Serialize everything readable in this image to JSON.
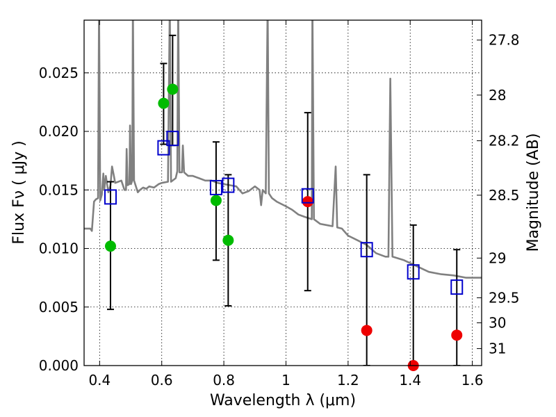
{
  "chart_data": {
    "type": "scatter",
    "xlabel": "Wavelength  λ (μm)",
    "ylabel": "Flux  Fν  ( μJy )",
    "ylabel_right": "Magnitude (AB)",
    "xlim": [
      0.35,
      1.63
    ],
    "ylim": [
      0.0,
      0.0295
    ],
    "grid": true,
    "x_ticks": [
      0.4,
      0.6,
      0.8,
      1.0,
      1.2,
      1.4,
      1.6
    ],
    "x_tick_labels": [
      "0.4",
      "0.6",
      "0.8",
      "1",
      "1.2",
      "1.4",
      "1.6"
    ],
    "y_ticks": [
      0.0,
      0.005,
      0.01,
      0.015,
      0.02,
      0.025
    ],
    "y_tick_labels": [
      "0.000",
      "0.005",
      "0.010",
      "0.015",
      "0.020",
      "0.025"
    ],
    "right_ticks": [
      {
        "label": "27.8",
        "flux": 0.0278
      },
      {
        "label": "28",
        "flux": 0.0231
      },
      {
        "label": "28.2",
        "flux": 0.0192
      },
      {
        "label": "28.5",
        "flux": 0.01455
      },
      {
        "label": "29",
        "flux": 0.00918
      },
      {
        "label": "29.5",
        "flux": 0.00579
      },
      {
        "label": "30",
        "flux": 0.00365
      },
      {
        "label": "31",
        "flux": 0.00145
      }
    ],
    "colors": {
      "model": "#808080",
      "model_photometry": "#0000cc",
      "detections": "#00bb00",
      "upper_limits": "#ee0000",
      "errorbar": "#000000"
    },
    "model_photometry": [
      {
        "x": 0.435,
        "y": 0.0144
      },
      {
        "x": 0.606,
        "y": 0.0186
      },
      {
        "x": 0.635,
        "y": 0.0194
      },
      {
        "x": 0.775,
        "y": 0.0152
      },
      {
        "x": 0.814,
        "y": 0.0154
      },
      {
        "x": 1.07,
        "y": 0.0145
      },
      {
        "x": 1.26,
        "y": 0.0099
      },
      {
        "x": 1.41,
        "y": 0.008
      },
      {
        "x": 1.55,
        "y": 0.0067
      }
    ],
    "detections": [
      {
        "x": 0.435,
        "y": 0.0102
      },
      {
        "x": 0.606,
        "y": 0.0224
      },
      {
        "x": 0.635,
        "y": 0.0236
      },
      {
        "x": 0.775,
        "y": 0.0141
      },
      {
        "x": 0.814,
        "y": 0.0107
      }
    ],
    "upper_limits": [
      {
        "x": 1.07,
        "y": 0.014
      },
      {
        "x": 1.26,
        "y": 0.003
      },
      {
        "x": 1.41,
        "y": 0.0
      },
      {
        "x": 1.55,
        "y": 0.0026
      }
    ],
    "error_bars": [
      {
        "x": 0.435,
        "low": 0.0048,
        "high": 0.0157
      },
      {
        "x": 0.606,
        "low": 0.0189,
        "high": 0.0258
      },
      {
        "x": 0.635,
        "low": 0.0188,
        "high": 0.0282
      },
      {
        "x": 0.775,
        "low": 0.009,
        "high": 0.0191
      },
      {
        "x": 0.814,
        "low": 0.0051,
        "high": 0.0163
      },
      {
        "x": 1.07,
        "low": 0.0064,
        "high": 0.0216
      },
      {
        "x": 1.26,
        "low": 0.0,
        "high": 0.0163
      },
      {
        "x": 1.41,
        "low": 0.0,
        "high": 0.012
      },
      {
        "x": 1.55,
        "low": 0.0,
        "high": 0.0099
      }
    ],
    "model_spectrum": [
      [
        0.35,
        0.0117
      ],
      [
        0.37,
        0.0117
      ],
      [
        0.375,
        0.0115
      ],
      [
        0.382,
        0.014
      ],
      [
        0.388,
        0.0142
      ],
      [
        0.395,
        0.0143
      ],
      [
        0.398,
        0.031
      ],
      [
        0.402,
        0.0141
      ],
      [
        0.407,
        0.0146
      ],
      [
        0.412,
        0.0164
      ],
      [
        0.415,
        0.015
      ],
      [
        0.42,
        0.0162
      ],
      [
        0.428,
        0.0148
      ],
      [
        0.435,
        0.0154
      ],
      [
        0.44,
        0.017
      ],
      [
        0.446,
        0.0162
      ],
      [
        0.45,
        0.0156
      ],
      [
        0.46,
        0.0157
      ],
      [
        0.47,
        0.0158
      ],
      [
        0.48,
        0.015
      ],
      [
        0.485,
        0.015
      ],
      [
        0.487,
        0.0185
      ],
      [
        0.49,
        0.0154
      ],
      [
        0.496,
        0.0155
      ],
      [
        0.498,
        0.0205
      ],
      [
        0.501,
        0.0155
      ],
      [
        0.505,
        0.0158
      ],
      [
        0.507,
        0.031
      ],
      [
        0.511,
        0.0158
      ],
      [
        0.518,
        0.0152
      ],
      [
        0.523,
        0.0148
      ],
      [
        0.53,
        0.015
      ],
      [
        0.54,
        0.0152
      ],
      [
        0.55,
        0.0151
      ],
      [
        0.56,
        0.0153
      ],
      [
        0.575,
        0.0152
      ],
      [
        0.59,
        0.0155
      ],
      [
        0.6,
        0.0156
      ],
      [
        0.62,
        0.0157
      ],
      [
        0.626,
        0.031
      ],
      [
        0.63,
        0.0157
      ],
      [
        0.645,
        0.016
      ],
      [
        0.65,
        0.0166
      ],
      [
        0.653,
        0.031
      ],
      [
        0.657,
        0.0165
      ],
      [
        0.665,
        0.0165
      ],
      [
        0.668,
        0.0188
      ],
      [
        0.672,
        0.0165
      ],
      [
        0.685,
        0.0162
      ],
      [
        0.7,
        0.0162
      ],
      [
        0.72,
        0.016
      ],
      [
        0.74,
        0.0158
      ],
      [
        0.76,
        0.0158
      ],
      [
        0.78,
        0.0156
      ],
      [
        0.8,
        0.0155
      ],
      [
        0.82,
        0.0154
      ],
      [
        0.84,
        0.0153
      ],
      [
        0.85,
        0.015
      ],
      [
        0.86,
        0.0147
      ],
      [
        0.88,
        0.0149
      ],
      [
        0.9,
        0.0153
      ],
      [
        0.915,
        0.015
      ],
      [
        0.92,
        0.0137
      ],
      [
        0.925,
        0.015
      ],
      [
        0.935,
        0.0147
      ],
      [
        0.941,
        0.031
      ],
      [
        0.945,
        0.0147
      ],
      [
        0.955,
        0.0143
      ],
      [
        0.97,
        0.014
      ],
      [
        0.985,
        0.0138
      ],
      [
        1.0,
        0.0136
      ],
      [
        1.02,
        0.0133
      ],
      [
        1.04,
        0.0129
      ],
      [
        1.06,
        0.0127
      ],
      [
        1.083,
        0.0125
      ],
      [
        1.085,
        0.031
      ],
      [
        1.09,
        0.0125
      ],
      [
        1.11,
        0.0121
      ],
      [
        1.13,
        0.012
      ],
      [
        1.15,
        0.0119
      ],
      [
        1.16,
        0.017
      ],
      [
        1.165,
        0.0118
      ],
      [
        1.18,
        0.0117
      ],
      [
        1.2,
        0.0111
      ],
      [
        1.23,
        0.0107
      ],
      [
        1.26,
        0.0103
      ],
      [
        1.29,
        0.0096
      ],
      [
        1.32,
        0.0093
      ],
      [
        1.33,
        0.0093
      ],
      [
        1.336,
        0.0245
      ],
      [
        1.343,
        0.0093
      ],
      [
        1.38,
        0.009
      ],
      [
        1.42,
        0.0085
      ],
      [
        1.46,
        0.008
      ],
      [
        1.5,
        0.0078
      ],
      [
        1.54,
        0.0077
      ],
      [
        1.58,
        0.0075
      ],
      [
        1.63,
        0.0075
      ]
    ]
  }
}
